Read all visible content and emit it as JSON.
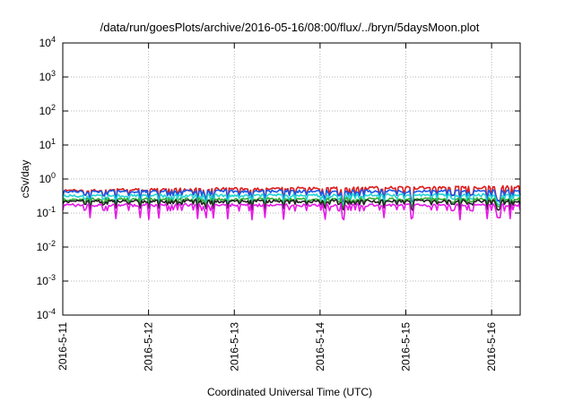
{
  "chart_data": {
    "type": "line",
    "title": "/data/run/goesPlots/archive/2016-05-16/08:00/flux/../bryn/5daysMoon.plot",
    "xlabel": "Coordinated Universal Time (UTC)",
    "ylabel": "cSv/day",
    "y_scale": "log",
    "ylim": [
      0.0001,
      10000
    ],
    "y_ticks": [
      {
        "base": "10",
        "exp": "4",
        "value": 10000
      },
      {
        "base": "10",
        "exp": "3",
        "value": 1000
      },
      {
        "base": "10",
        "exp": "2",
        "value": 100
      },
      {
        "base": "10",
        "exp": "1",
        "value": 10
      },
      {
        "base": "10",
        "exp": "0",
        "value": 1
      },
      {
        "base": "10",
        "exp": "-1",
        "value": 0.1
      },
      {
        "base": "10",
        "exp": "-2",
        "value": 0.01
      },
      {
        "base": "10",
        "exp": "-3",
        "value": 0.001
      },
      {
        "base": "10",
        "exp": "-4",
        "value": 0.0001
      }
    ],
    "xlim": [
      "2016-05-11T00:00",
      "2016-05-16T08:00"
    ],
    "x_ticks": [
      "2016-5-11",
      "2016-5-12",
      "2016-5-13",
      "2016-5-14",
      "2016-5-15",
      "2016-5-16"
    ],
    "x_tick_dates": [
      "2016-05-11",
      "2016-05-12",
      "2016-05-13",
      "2016-05-14",
      "2016-05-15",
      "2016-05-16"
    ],
    "grid": true,
    "series": [
      {
        "color": "#dd1c1c",
        "base": 0.46,
        "trend": 0.14,
        "dips": [
          0.34,
          0.22
        ]
      },
      {
        "color": "#1a56e6",
        "base": 0.43,
        "trend": 0.02,
        "dips": [
          0.33,
          0.22
        ]
      },
      {
        "color": "#22d4d4",
        "base": 0.32,
        "trend": 0.04,
        "dips": [
          0.26,
          0.18
        ]
      },
      {
        "color": "#33aa33",
        "base": 0.25,
        "trend": 0.02,
        "dips": [
          0.21,
          0.16
        ]
      },
      {
        "color": "#222222",
        "base": 0.22,
        "trend": 0.02,
        "dips": [
          0.18,
          0.13
        ]
      },
      {
        "color": "#e619e6",
        "base": 0.17,
        "trend": 0.01,
        "dips": [
          0.12,
          0.07
        ]
      }
    ]
  }
}
